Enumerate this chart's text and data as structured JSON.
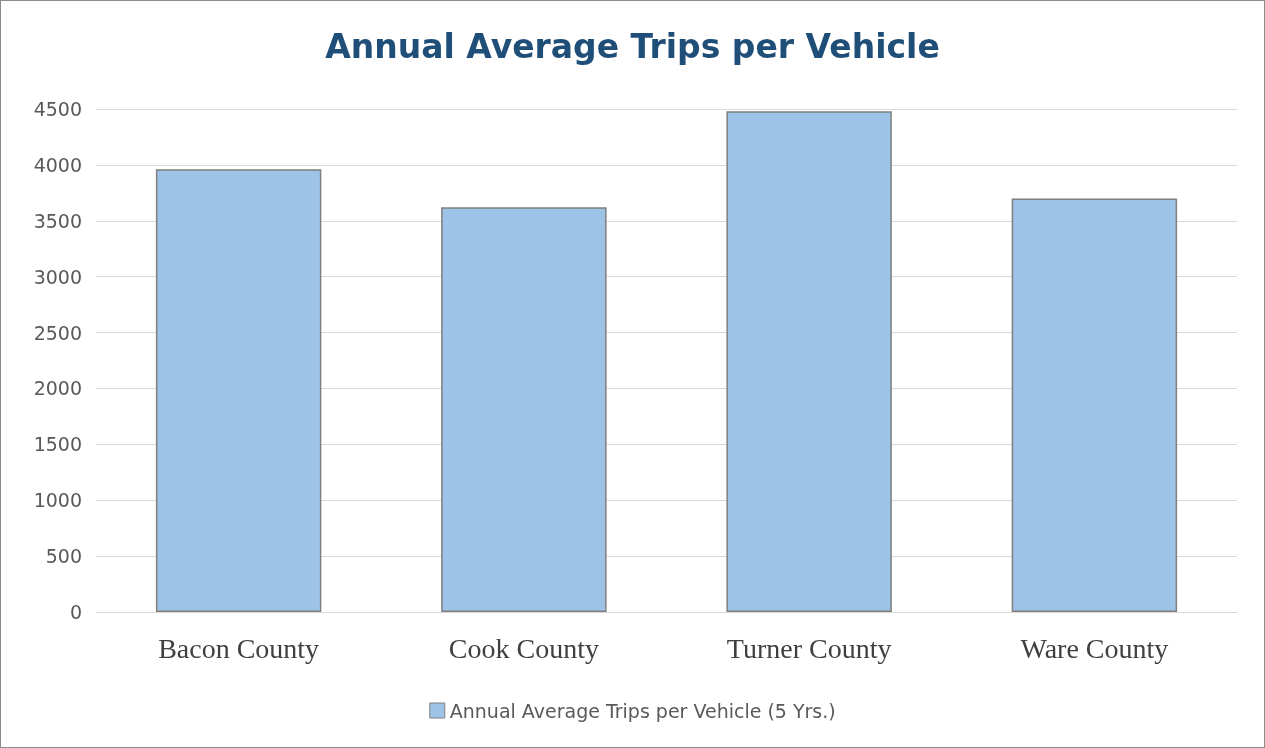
{
  "chart_data": {
    "type": "bar",
    "title": "Annual Average Trips per Vehicle",
    "categories": [
      "Bacon County",
      "Cook County",
      "Turner County",
      "Ware County"
    ],
    "series": [
      {
        "name": "Annual Average Trips per Vehicle (5 Yrs.)",
        "color": "#9dc3e6",
        "values": [
          3960,
          3620,
          4480,
          3700
        ]
      }
    ],
    "ylim": [
      0,
      4500
    ],
    "yticks": [
      0,
      500,
      1000,
      1500,
      2000,
      2500,
      3000,
      3500,
      4000,
      4500
    ],
    "grid": "y",
    "legend": "bottom"
  }
}
